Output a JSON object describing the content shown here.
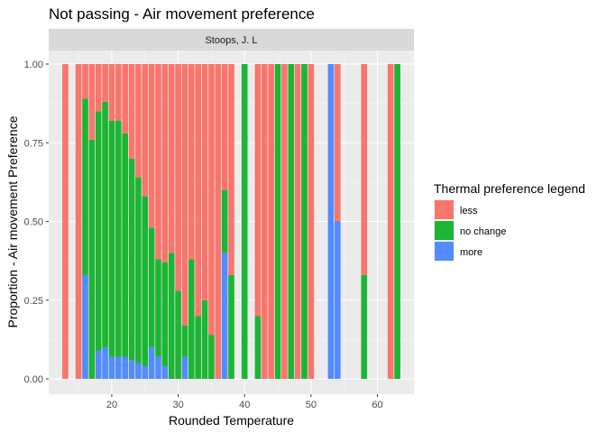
{
  "chart_data": {
    "type": "bar",
    "stacked": true,
    "title": "Not passing - Air movement preference",
    "facet_label": "Stoops, J. L",
    "xlabel": "Rounded Temperature",
    "ylabel": "Proportion - Air movement Preference",
    "xlim": [
      10.5,
      65.5
    ],
    "ylim": [
      0,
      1
    ],
    "x_ticks": [
      {
        "value": 20,
        "label": "20"
      },
      {
        "value": 30,
        "label": "30"
      },
      {
        "value": 40,
        "label": "40"
      },
      {
        "value": 50,
        "label": "50"
      },
      {
        "value": 60,
        "label": "60"
      }
    ],
    "y_ticks": [
      {
        "value": 0,
        "label": "0.00"
      },
      {
        "value": 0.25,
        "label": "0.25"
      },
      {
        "value": 0.5,
        "label": "0.50"
      },
      {
        "value": 0.75,
        "label": "0.75"
      },
      {
        "value": 1,
        "label": "1.00"
      }
    ],
    "grid": true,
    "legend": {
      "title": "Thermal preference legend",
      "placement": "right",
      "entries": [
        {
          "name": "less",
          "color": "#F8766D"
        },
        {
          "name": "no change",
          "color": "#1CB534"
        },
        {
          "name": "more",
          "color": "#548BFF"
        }
      ]
    },
    "stack_order": [
      "more",
      "no change",
      "less"
    ],
    "bars": [
      {
        "x": 13,
        "less": 1.0,
        "no_change": 0.0,
        "more": 0.0
      },
      {
        "x": 15,
        "less": 1.0,
        "no_change": 0.0,
        "more": 0.0
      },
      {
        "x": 16,
        "less": 0.11,
        "no_change": 0.56,
        "more": 0.33
      },
      {
        "x": 17,
        "less": 0.24,
        "no_change": 0.76,
        "more": 0.0
      },
      {
        "x": 18,
        "less": 0.15,
        "no_change": 0.76,
        "more": 0.09
      },
      {
        "x": 19,
        "less": 0.12,
        "no_change": 0.78,
        "more": 0.1
      },
      {
        "x": 20,
        "less": 0.18,
        "no_change": 0.75,
        "more": 0.07
      },
      {
        "x": 21,
        "less": 0.18,
        "no_change": 0.75,
        "more": 0.07
      },
      {
        "x": 22,
        "less": 0.22,
        "no_change": 0.71,
        "more": 0.07
      },
      {
        "x": 23,
        "less": 0.3,
        "no_change": 0.64,
        "more": 0.06
      },
      {
        "x": 24,
        "less": 0.36,
        "no_change": 0.59,
        "more": 0.05
      },
      {
        "x": 25,
        "less": 0.42,
        "no_change": 0.54,
        "more": 0.04
      },
      {
        "x": 26,
        "less": 0.52,
        "no_change": 0.38,
        "more": 0.1
      },
      {
        "x": 27,
        "less": 0.62,
        "no_change": 0.31,
        "more": 0.07
      },
      {
        "x": 28,
        "less": 0.63,
        "no_change": 0.33,
        "more": 0.04
      },
      {
        "x": 29,
        "less": 0.6,
        "no_change": 0.4,
        "more": 0.0
      },
      {
        "x": 30,
        "less": 0.72,
        "no_change": 0.28,
        "more": 0.0
      },
      {
        "x": 31,
        "less": 0.83,
        "no_change": 0.1,
        "more": 0.07
      },
      {
        "x": 32,
        "less": 0.62,
        "no_change": 0.38,
        "more": 0.0
      },
      {
        "x": 33,
        "less": 0.8,
        "no_change": 0.2,
        "more": 0.0
      },
      {
        "x": 34,
        "less": 0.75,
        "no_change": 0.25,
        "more": 0.0
      },
      {
        "x": 35,
        "less": 0.86,
        "no_change": 0.14,
        "more": 0.0
      },
      {
        "x": 36,
        "less": 1.0,
        "no_change": 0.0,
        "more": 0.0
      },
      {
        "x": 37,
        "less": 0.4,
        "no_change": 0.2,
        "more": 0.4
      },
      {
        "x": 38,
        "less": 0.67,
        "no_change": 0.33,
        "more": 0.0
      },
      {
        "x": 40,
        "less": 0.0,
        "no_change": 1.0,
        "more": 0.0
      },
      {
        "x": 42,
        "less": 0.8,
        "no_change": 0.2,
        "more": 0.0
      },
      {
        "x": 43,
        "less": 1.0,
        "no_change": 0.0,
        "more": 0.0
      },
      {
        "x": 44,
        "less": 1.0,
        "no_change": 0.0,
        "more": 0.0
      },
      {
        "x": 45,
        "less": 0.0,
        "no_change": 1.0,
        "more": 0.0
      },
      {
        "x": 46,
        "less": 1.0,
        "no_change": 0.0,
        "more": 0.0
      },
      {
        "x": 47,
        "less": 0.0,
        "no_change": 1.0,
        "more": 0.0
      },
      {
        "x": 48,
        "less": 1.0,
        "no_change": 0.0,
        "more": 0.0
      },
      {
        "x": 49,
        "less": 0.0,
        "no_change": 1.0,
        "more": 0.0
      },
      {
        "x": 50,
        "less": 1.0,
        "no_change": 0.0,
        "more": 0.0
      },
      {
        "x": 53,
        "less": 0.0,
        "no_change": 0.0,
        "more": 1.0
      },
      {
        "x": 54,
        "less": 0.5,
        "no_change": 0.0,
        "more": 0.5
      },
      {
        "x": 58,
        "less": 0.67,
        "no_change": 0.33,
        "more": 0.0
      },
      {
        "x": 62,
        "less": 1.0,
        "no_change": 0.0,
        "more": 0.0
      },
      {
        "x": 63,
        "less": 0.0,
        "no_change": 1.0,
        "more": 0.0
      }
    ]
  }
}
